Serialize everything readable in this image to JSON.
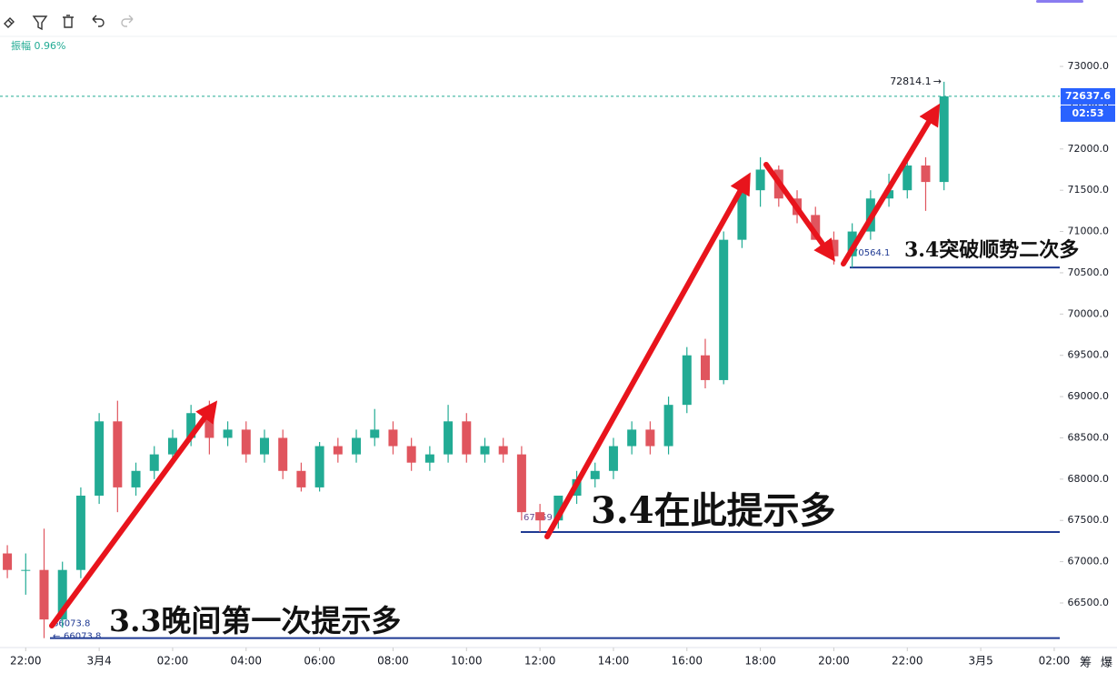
{
  "chart_data": {
    "type": "candlestick",
    "stats": "振幅 0.96%",
    "x": [
      "3月3 21:30",
      "3月3 22:00",
      "3月3 22:30",
      "3月3 23:00",
      "3月3 23:30",
      "3月4 00:00",
      "3月4 00:30",
      "3月4 01:00",
      "3月4 01:30",
      "3月4 02:00",
      "3月4 02:30",
      "3月4 03:00",
      "3月4 03:30",
      "3月4 04:00",
      "3月4 04:30",
      "3月4 05:00",
      "3月4 05:30",
      "3月4 06:00",
      "3月4 06:30",
      "3月4 07:00",
      "3月4 07:30",
      "3月4 08:00",
      "3月4 08:30",
      "3月4 09:00",
      "3月4 09:30",
      "3月4 10:00",
      "3月4 10:30",
      "3月4 11:00",
      "3月4 11:30",
      "3月4 12:00",
      "3月4 12:30",
      "3月4 13:00",
      "3月4 13:30",
      "3月4 14:00",
      "3月4 14:30",
      "3月4 15:00",
      "3月4 15:30",
      "3月4 16:00",
      "3月4 16:30",
      "3月4 17:00",
      "3月4 17:30",
      "3月4 18:00",
      "3月4 18:30",
      "3月4 19:00",
      "3月4 19:30",
      "3月4 20:00",
      "3月4 20:30",
      "3月4 21:00",
      "3月4 21:30",
      "3月4 22:00",
      "3月4 22:30",
      "3月4 23:00"
    ],
    "open": [
      67100,
      66900,
      66900,
      66300,
      66900,
      67800,
      68700,
      67900,
      68100,
      68300,
      68500,
      68800,
      68500,
      68600,
      68300,
      68500,
      68100,
      67900,
      68400,
      68300,
      68500,
      68600,
      68400,
      68200,
      68300,
      68700,
      68300,
      68400,
      68300,
      67600,
      67500,
      67800,
      68000,
      68100,
      68400,
      68600,
      68400,
      68900,
      69500,
      69200,
      70900,
      71500,
      71750,
      71400,
      71200,
      70900,
      70700,
      71000,
      71400,
      71500,
      71800,
      71600
    ],
    "high": [
      67200,
      67100,
      67400,
      67000,
      67900,
      68800,
      68950,
      68200,
      68400,
      68600,
      68900,
      68950,
      68700,
      68700,
      68600,
      68600,
      68200,
      68450,
      68500,
      68600,
      68850,
      68700,
      68500,
      68400,
      68900,
      68800,
      68500,
      68500,
      68400,
      67700,
      67800,
      68100,
      68200,
      68500,
      68700,
      68700,
      69000,
      69600,
      69700,
      71000,
      71600,
      71900,
      71800,
      71500,
      71300,
      71000,
      71100,
      71500,
      71700,
      71900,
      71900,
      72814.1
    ],
    "low": [
      66800,
      66600,
      66073.8,
      66200,
      66800,
      67700,
      67600,
      67800,
      68000,
      68200,
      68400,
      68300,
      68400,
      68200,
      68200,
      68000,
      67850,
      67850,
      68200,
      68200,
      68400,
      68300,
      68100,
      68100,
      68200,
      68200,
      68200,
      68200,
      67500,
      67359,
      67400,
      67700,
      67900,
      68000,
      68300,
      68300,
      68300,
      68800,
      69100,
      69150,
      70800,
      71300,
      71300,
      71100,
      70900,
      70600,
      70564.1,
      70900,
      71300,
      71400,
      71250,
      71500
    ],
    "close": [
      66900,
      66900,
      66300,
      66900,
      67800,
      68700,
      67900,
      68100,
      68300,
      68500,
      68800,
      68500,
      68600,
      68300,
      68500,
      68100,
      67900,
      68400,
      68300,
      68500,
      68600,
      68400,
      68200,
      68300,
      68700,
      68300,
      68400,
      68300,
      67600,
      67500,
      67800,
      68000,
      68100,
      68400,
      68600,
      68400,
      68900,
      69500,
      69200,
      70900,
      71500,
      71750,
      71400,
      71200,
      70900,
      70700,
      71000,
      71400,
      71500,
      71800,
      71600,
      72637.6
    ],
    "up_color": "#22ab94",
    "down_color": "#e0555e",
    "ylim": [
      65960,
      73364
    ],
    "yticks": [
      {
        "value": 66500,
        "label": "66500.0"
      },
      {
        "value": 67000,
        "label": "67000.0"
      },
      {
        "value": 67500,
        "label": "67500.0"
      },
      {
        "value": 68000,
        "label": "68000.0"
      },
      {
        "value": 68500,
        "label": "68500.0"
      },
      {
        "value": 69000,
        "label": "69000.0"
      },
      {
        "value": 69500,
        "label": "69500.0"
      },
      {
        "value": 70000,
        "label": "70000.0"
      },
      {
        "value": 70500,
        "label": "70500.0"
      },
      {
        "value": 71000,
        "label": "71000.0"
      },
      {
        "value": 71500,
        "label": "71500.0"
      },
      {
        "value": 72000,
        "label": "72000.0"
      },
      {
        "value": 72500,
        "label": "72500.0"
      },
      {
        "value": 73000,
        "label": "73000.0"
      }
    ],
    "xlim": [
      "3月3 21:18",
      "3月5 02:09"
    ],
    "xticks": [
      {
        "value": "3月3 22:00",
        "label": "22:00"
      },
      {
        "value": "3月4 00:00",
        "label": "3月4"
      },
      {
        "value": "3月4 02:00",
        "label": "02:00"
      },
      {
        "value": "3月4 04:00",
        "label": "04:00"
      },
      {
        "value": "3月4 06:00",
        "label": "06:00"
      },
      {
        "value": "3月4 08:00",
        "label": "08:00"
      },
      {
        "value": "3月4 10:00",
        "label": "10:00"
      },
      {
        "value": "3月4 12:00",
        "label": "12:00"
      },
      {
        "value": "3月4 14:00",
        "label": "14:00"
      },
      {
        "value": "3月4 16:00",
        "label": "16:00"
      },
      {
        "value": "3月4 18:00",
        "label": "18:00"
      },
      {
        "value": "3月4 20:00",
        "label": "20:00"
      },
      {
        "value": "3月4 22:00",
        "label": "22:00"
      },
      {
        "value": "3月5 00:00",
        "label": "3月5"
      },
      {
        "value": "3月5 02:00",
        "label": "02:00"
      }
    ],
    "last_price": 72637.6,
    "countdown": "02:53",
    "high_mark": 72814.1,
    "levels": [
      66073.8,
      67359,
      70564.1
    ],
    "annotations": [
      "3.3晚间第一次提示多",
      "3.4在此提示多",
      "3.4突破顺势二次多"
    ],
    "corner_icons": [
      "筹",
      "爆"
    ]
  }
}
